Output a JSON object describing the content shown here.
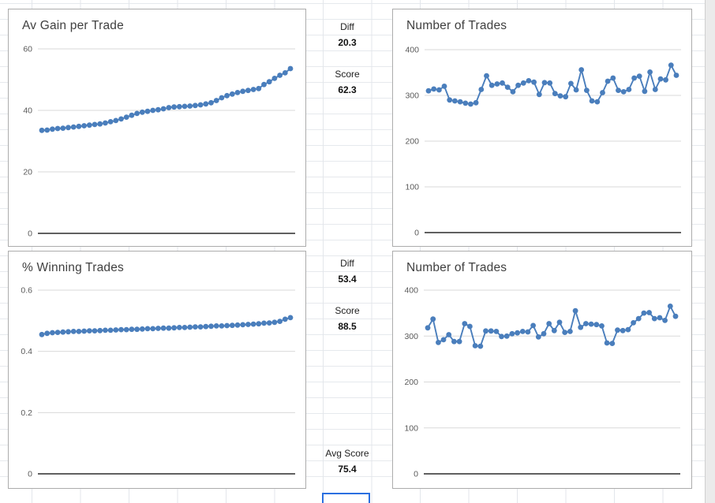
{
  "app": {
    "kind": "spreadsheet-with-embedded-charts"
  },
  "colors": {
    "series": "#4a7ebc",
    "chart_grid": "#d9d9d9",
    "chart_axis": "#2b2b2b",
    "chart_border": "#acacac",
    "sheet_grid": "#e3e6eb",
    "selection_border": "#2b6fe0",
    "title_text": "#404040",
    "tick_text": "#595959"
  },
  "metrics": {
    "top": {
      "diff_label": "Diff",
      "diff_value": "20.3",
      "score_label": "Score",
      "score_value": "62.3"
    },
    "bottom": {
      "diff_label": "Diff",
      "diff_value": "53.4",
      "score_label": "Score",
      "score_value": "88.5"
    },
    "avg_label": "Avg Score",
    "avg_value": "75.4"
  },
  "chart_data": [
    {
      "type": "line",
      "title": "Av Gain per Trade",
      "markers": true,
      "legend": "none",
      "grid": "horizontal",
      "xlabel": "",
      "ylabel": "",
      "ylim": [
        0,
        60
      ],
      "yticks": [
        0,
        20,
        40,
        60
      ],
      "values": [
        33.5,
        33.6,
        33.9,
        34.1,
        34.2,
        34.4,
        34.6,
        34.8,
        35.0,
        35.2,
        35.4,
        35.6,
        35.9,
        36.3,
        36.7,
        37.2,
        37.8,
        38.4,
        39.0,
        39.4,
        39.7,
        40.0,
        40.2,
        40.5,
        40.9,
        41.1,
        41.2,
        41.3,
        41.4,
        41.6,
        41.8,
        42.1,
        42.5,
        43.2,
        44.1,
        44.8,
        45.3,
        45.8,
        46.2,
        46.5,
        46.8,
        47.1,
        48.4,
        49.3,
        50.4,
        51.4,
        52.2,
        53.6
      ]
    },
    {
      "type": "line",
      "title": "Number of Trades",
      "markers": true,
      "legend": "none",
      "grid": "horizontal",
      "xlabel": "",
      "ylabel": "",
      "ylim": [
        0,
        400
      ],
      "yticks": [
        0,
        100,
        200,
        300,
        400
      ],
      "values": [
        310,
        314,
        312,
        320,
        290,
        288,
        286,
        283,
        281,
        284,
        313,
        343,
        322,
        325,
        327,
        318,
        308,
        322,
        327,
        332,
        329,
        302,
        328,
        327,
        304,
        299,
        297,
        326,
        312,
        356,
        311,
        288,
        286,
        306,
        331,
        338,
        311,
        308,
        313,
        338,
        342,
        309,
        351,
        313,
        336,
        334,
        366,
        344
      ]
    },
    {
      "type": "line",
      "title": "% Winning Trades",
      "markers": true,
      "legend": "none",
      "grid": "horizontal",
      "xlabel": "",
      "ylabel": "",
      "ylim": [
        0,
        0.6
      ],
      "yticks": [
        0,
        0.2,
        0.4,
        0.6
      ],
      "values": [
        0.455,
        0.459,
        0.461,
        0.462,
        0.463,
        0.464,
        0.465,
        0.465,
        0.466,
        0.467,
        0.467,
        0.468,
        0.469,
        0.469,
        0.47,
        0.471,
        0.471,
        0.472,
        0.472,
        0.473,
        0.474,
        0.474,
        0.475,
        0.476,
        0.476,
        0.477,
        0.478,
        0.478,
        0.479,
        0.48,
        0.48,
        0.481,
        0.482,
        0.483,
        0.483,
        0.484,
        0.485,
        0.486,
        0.487,
        0.488,
        0.489,
        0.49,
        0.492,
        0.493,
        0.495,
        0.498,
        0.505,
        0.51
      ]
    },
    {
      "type": "line",
      "title": "Number of Trades",
      "markers": true,
      "legend": "none",
      "grid": "horizontal",
      "xlabel": "",
      "ylabel": "",
      "ylim": [
        0,
        400
      ],
      "yticks": [
        0,
        100,
        200,
        300,
        400
      ],
      "values": [
        318,
        337,
        286,
        292,
        303,
        288,
        288,
        327,
        321,
        279,
        278,
        311,
        311,
        310,
        299,
        300,
        305,
        307,
        310,
        309,
        323,
        298,
        305,
        327,
        312,
        330,
        308,
        310,
        355,
        319,
        327,
        326,
        325,
        322,
        285,
        284,
        313,
        312,
        314,
        329,
        338,
        350,
        351,
        338,
        340,
        334,
        365,
        343
      ]
    }
  ]
}
